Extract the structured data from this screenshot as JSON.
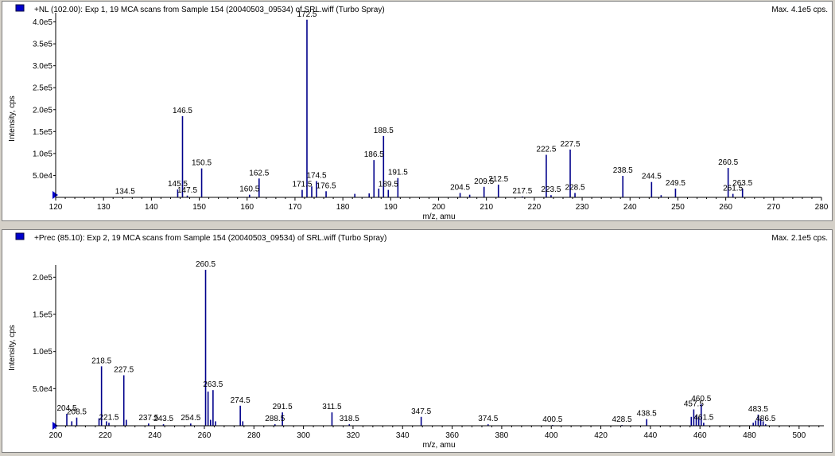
{
  "colors": {
    "bar": "#00008b",
    "axis": "#000000",
    "marker": "#0000cc",
    "pane_bg": "#ffffff",
    "window_bg": "#d4d0c8"
  },
  "panes": [
    {
      "title": "+NL (102.00): Exp 1, 19 MCA scans from Sample 154 (20040503_09534) of SRL.wiff (Turbo Spray)",
      "max": "Max. 4.1e5 cps."
    },
    {
      "title": "+Prec (85.10): Exp 2, 19 MCA scans from Sample 154 (20040503_09534) of SRL.wiff (Turbo Spray)",
      "max": "Max. 2.1e5 cps."
    }
  ],
  "chart_data": [
    {
      "type": "bar",
      "xlabel": "m/z, amu",
      "ylabel": "Intensity, cps",
      "xlim": [
        120,
        280
      ],
      "ylim": [
        0,
        410000
      ],
      "xticks": [
        "120",
        "130",
        "140",
        "150",
        "160",
        "170",
        "180",
        "190",
        "200",
        "210",
        "220",
        "230",
        "240",
        "250",
        "260",
        "270",
        "280"
      ],
      "yticks": [
        {
          "label": "5.0e4",
          "value": 50000
        },
        {
          "label": "1.0e5",
          "value": 100000
        },
        {
          "label": "1.5e5",
          "value": 150000
        },
        {
          "label": "2.0e5",
          "value": 200000
        },
        {
          "label": "2.5e5",
          "value": 250000
        },
        {
          "label": "3.0e5",
          "value": 300000
        },
        {
          "label": "3.5e5",
          "value": 350000
        },
        {
          "label": "4.0e5",
          "value": 400000
        }
      ],
      "peaks": [
        {
          "x": 134.5,
          "y": 1000,
          "label": "134.5"
        },
        {
          "x": 145.5,
          "y": 18000,
          "label": "145.5"
        },
        {
          "x": 146.5,
          "y": 185000,
          "label": "146.5"
        },
        {
          "x": 147.5,
          "y": 4000,
          "label": "147.5"
        },
        {
          "x": 150.5,
          "y": 66000,
          "label": "150.5"
        },
        {
          "x": 160.5,
          "y": 6000,
          "label": "160.5"
        },
        {
          "x": 162.5,
          "y": 43000,
          "label": "162.5"
        },
        {
          "x": 171.5,
          "y": 17000,
          "label": "171.5"
        },
        {
          "x": 172.5,
          "y": 405000,
          "label": "172.5"
        },
        {
          "x": 173.5,
          "y": 25000,
          "label": ""
        },
        {
          "x": 174.5,
          "y": 37000,
          "label": "174.5"
        },
        {
          "x": 176.5,
          "y": 14000,
          "label": "176.5"
        },
        {
          "x": 182.5,
          "y": 8000,
          "label": ""
        },
        {
          "x": 185.5,
          "y": 9000,
          "label": ""
        },
        {
          "x": 186.5,
          "y": 85000,
          "label": "186.5"
        },
        {
          "x": 187.5,
          "y": 20000,
          "label": ""
        },
        {
          "x": 188.5,
          "y": 140000,
          "label": "188.5"
        },
        {
          "x": 189.5,
          "y": 17000,
          "label": "189.5"
        },
        {
          "x": 191.5,
          "y": 44000,
          "label": "191.5"
        },
        {
          "x": 204.5,
          "y": 10000,
          "label": "204.5"
        },
        {
          "x": 206.5,
          "y": 6000,
          "label": ""
        },
        {
          "x": 209.5,
          "y": 24000,
          "label": "209.5"
        },
        {
          "x": 212.5,
          "y": 29000,
          "label": "212.5"
        },
        {
          "x": 217.5,
          "y": 2000,
          "label": "217.5"
        },
        {
          "x": 222.5,
          "y": 97000,
          "label": "222.5"
        },
        {
          "x": 223.5,
          "y": 5000,
          "label": "223.5"
        },
        {
          "x": 227.5,
          "y": 109000,
          "label": "227.5"
        },
        {
          "x": 228.5,
          "y": 10000,
          "label": "228.5"
        },
        {
          "x": 238.5,
          "y": 49000,
          "label": "238.5"
        },
        {
          "x": 244.5,
          "y": 35000,
          "label": "244.5"
        },
        {
          "x": 246.5,
          "y": 5000,
          "label": ""
        },
        {
          "x": 249.5,
          "y": 20000,
          "label": "249.5"
        },
        {
          "x": 260.5,
          "y": 67000,
          "label": "260.5"
        },
        {
          "x": 261.5,
          "y": 8000,
          "label": "261.5"
        },
        {
          "x": 263.5,
          "y": 20000,
          "label": "263.5"
        }
      ]
    },
    {
      "type": "bar",
      "xlabel": "m/z, amu",
      "ylabel": "Intensity, cps",
      "xlim": [
        200,
        510
      ],
      "ylim": [
        0,
        210000
      ],
      "xticks": [
        "200",
        "220",
        "240",
        "260",
        "280",
        "300",
        "320",
        "340",
        "360",
        "380",
        "400",
        "420",
        "440",
        "460",
        "480",
        "500"
      ],
      "yticks": [
        {
          "label": "5.0e4",
          "value": 50000
        },
        {
          "label": "1.0e5",
          "value": 100000
        },
        {
          "label": "1.5e5",
          "value": 150000
        },
        {
          "label": "2.0e5",
          "value": 200000
        }
      ],
      "peaks": [
        {
          "x": 204.5,
          "y": 16000,
          "label": "204.5"
        },
        {
          "x": 206.5,
          "y": 6000,
          "label": ""
        },
        {
          "x": 208.5,
          "y": 11000,
          "label": "208.5"
        },
        {
          "x": 217.5,
          "y": 10000,
          "label": ""
        },
        {
          "x": 218.5,
          "y": 80000,
          "label": "218.5"
        },
        {
          "x": 220.5,
          "y": 6000,
          "label": ""
        },
        {
          "x": 221.5,
          "y": 4000,
          "label": "221.5"
        },
        {
          "x": 227.5,
          "y": 68000,
          "label": "227.5"
        },
        {
          "x": 228.5,
          "y": 8000,
          "label": ""
        },
        {
          "x": 237.5,
          "y": 3000,
          "label": "237.5"
        },
        {
          "x": 243.5,
          "y": 2000,
          "label": "243.5"
        },
        {
          "x": 254.5,
          "y": 3000,
          "label": "254.5"
        },
        {
          "x": 260.5,
          "y": 210000,
          "label": "260.5"
        },
        {
          "x": 261.5,
          "y": 46000,
          "label": ""
        },
        {
          "x": 262.5,
          "y": 8000,
          "label": ""
        },
        {
          "x": 263.5,
          "y": 48000,
          "label": "263.5"
        },
        {
          "x": 264.5,
          "y": 6000,
          "label": ""
        },
        {
          "x": 274.5,
          "y": 27000,
          "label": "274.5"
        },
        {
          "x": 275.5,
          "y": 6000,
          "label": ""
        },
        {
          "x": 288.5,
          "y": 2000,
          "label": "288.5"
        },
        {
          "x": 291.5,
          "y": 18000,
          "label": "291.5"
        },
        {
          "x": 311.5,
          "y": 18000,
          "label": "311.5"
        },
        {
          "x": 318.5,
          "y": 2000,
          "label": "318.5"
        },
        {
          "x": 347.5,
          "y": 12000,
          "label": "347.5"
        },
        {
          "x": 374.5,
          "y": 2000,
          "label": "374.5"
        },
        {
          "x": 400.5,
          "y": 1000,
          "label": "400.5"
        },
        {
          "x": 428.5,
          "y": 1000,
          "label": "428.5"
        },
        {
          "x": 438.5,
          "y": 9000,
          "label": "438.5"
        },
        {
          "x": 456.5,
          "y": 12000,
          "label": ""
        },
        {
          "x": 457.5,
          "y": 22000,
          "label": "457.5"
        },
        {
          "x": 458.5,
          "y": 14000,
          "label": ""
        },
        {
          "x": 459.5,
          "y": 12000,
          "label": ""
        },
        {
          "x": 460.5,
          "y": 29000,
          "label": "460.5"
        },
        {
          "x": 461.5,
          "y": 4000,
          "label": "461.5"
        },
        {
          "x": 481.5,
          "y": 4000,
          "label": ""
        },
        {
          "x": 482.5,
          "y": 7000,
          "label": ""
        },
        {
          "x": 483.5,
          "y": 15000,
          "label": "483.5"
        },
        {
          "x": 484.5,
          "y": 10000,
          "label": ""
        },
        {
          "x": 485.5,
          "y": 6000,
          "label": ""
        },
        {
          "x": 486.5,
          "y": 2000,
          "label": "486.5"
        }
      ]
    }
  ]
}
